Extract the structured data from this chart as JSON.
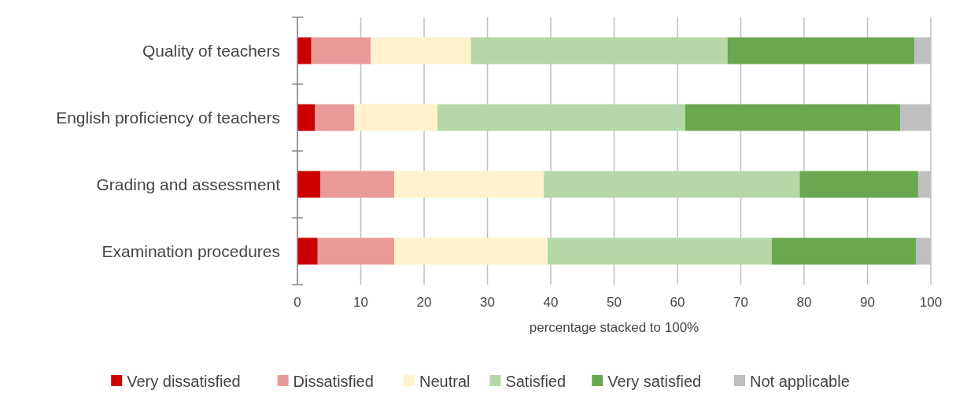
{
  "chart_data": {
    "type": "bar",
    "orientation": "horizontal",
    "stacked": true,
    "categories": [
      "Quality of teachers",
      "English proficiency of teachers",
      "Grading and assessment",
      "Examination procedures"
    ],
    "series": [
      {
        "name": "Very dissatisfied",
        "color": "#cc0000",
        "values": [
          2.2,
          2.8,
          3.6,
          3.2
        ]
      },
      {
        "name": "Dissatisfied",
        "color": "#ea9999",
        "values": [
          9.4,
          6.2,
          11.7,
          12.1
        ]
      },
      {
        "name": "Neutral",
        "color": "#fff2cc",
        "values": [
          15.8,
          13.1,
          23.6,
          24.2
        ]
      },
      {
        "name": "Satisfied",
        "color": "#b6d7a8",
        "values": [
          40.5,
          39.1,
          40.4,
          35.4
        ]
      },
      {
        "name": "Very satisfied",
        "color": "#6aa84f",
        "values": [
          29.5,
          34.0,
          18.7,
          22.8
        ]
      },
      {
        "name": "Not applicable",
        "color": "#bfbfbf",
        "values": [
          2.6,
          4.8,
          2.0,
          2.3
        ]
      }
    ],
    "xlim": [
      0,
      100
    ],
    "xticks": [
      0,
      10,
      20,
      30,
      40,
      50,
      60,
      70,
      80,
      90,
      100
    ],
    "xlabel": "percentage stacked to 100%",
    "grid": "x",
    "legend": "bottom"
  }
}
